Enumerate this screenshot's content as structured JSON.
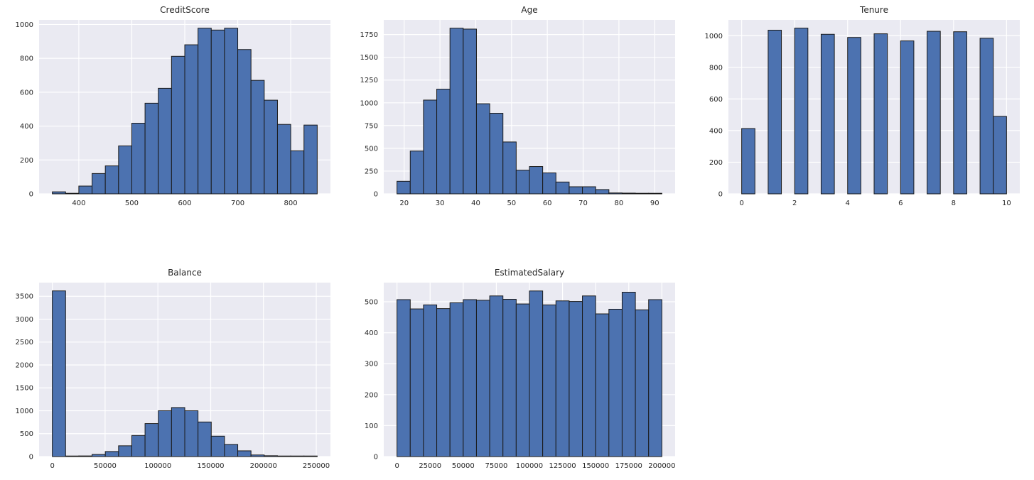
{
  "figure": {
    "background": "#ffffff",
    "plot_background": "#eaeaf2",
    "grid_color": "#ffffff",
    "bar_fill": "#4c72b0",
    "bar_edge": "#1a1a1a",
    "text_color": "#262626"
  },
  "chart_data": [
    {
      "type": "bar",
      "title": "CreditScore",
      "bin_start": 350,
      "bin_width": 25,
      "values": [
        12,
        3,
        46,
        120,
        165,
        283,
        417,
        535,
        623,
        812,
        880,
        978,
        967,
        978,
        852,
        670,
        553,
        410,
        254,
        406
      ],
      "xlim": [
        325,
        875
      ],
      "ylim": [
        0,
        1027
      ],
      "xticks": [
        400,
        500,
        600,
        700,
        800
      ],
      "yticks": [
        0,
        200,
        400,
        600,
        800,
        1000
      ],
      "grid": true,
      "legend": false,
      "row": 1
    },
    {
      "type": "bar",
      "title": "Age",
      "bin_start": 18,
      "bin_width": 3.7,
      "values": [
        138,
        470,
        1030,
        1150,
        1820,
        1810,
        990,
        885,
        570,
        260,
        300,
        230,
        130,
        78,
        78,
        47,
        10,
        8,
        2,
        2
      ],
      "xlim": [
        14.3,
        95.7
      ],
      "ylim": [
        0,
        1911
      ],
      "xticks": [
        20,
        30,
        40,
        50,
        60,
        70,
        80,
        90
      ],
      "yticks": [
        0,
        250,
        500,
        750,
        1000,
        1250,
        1500,
        1750
      ],
      "grid": true,
      "legend": false,
      "row": 1
    },
    {
      "type": "bar",
      "title": "Tenure",
      "bin_start": 0,
      "bin_width": 0.5,
      "values": [
        413,
        0,
        1035,
        0,
        1048,
        0,
        1009,
        0,
        989,
        0,
        1012,
        0,
        967,
        0,
        1028,
        0,
        1025,
        0,
        984,
        490
      ],
      "xlim": [
        -0.5,
        10.5
      ],
      "ylim": [
        0,
        1100
      ],
      "xticks": [
        0,
        2,
        4,
        6,
        8,
        10
      ],
      "yticks": [
        0,
        200,
        400,
        600,
        800,
        1000
      ],
      "grid": true,
      "legend": false,
      "row": 1
    },
    {
      "type": "bar",
      "title": "Balance",
      "bin_start": 0,
      "bin_width": 12545,
      "values": [
        3617,
        1,
        14,
        47,
        110,
        235,
        460,
        720,
        1000,
        1070,
        1000,
        755,
        445,
        265,
        125,
        35,
        18,
        3,
        1,
        1
      ],
      "xlim": [
        -12545,
        263443
      ],
      "ylim": [
        0,
        3798
      ],
      "xticks": [
        0,
        50000,
        100000,
        150000,
        200000,
        250000
      ],
      "yticks": [
        0,
        500,
        1000,
        1500,
        2000,
        2500,
        3000,
        3500
      ],
      "grid": true,
      "legend": false,
      "row": 2
    },
    {
      "type": "bar",
      "title": "EstimatedSalary",
      "bin_start": 0,
      "bin_width": 10000,
      "values": [
        507,
        477,
        490,
        478,
        497,
        507,
        505,
        519,
        508,
        493,
        535,
        490,
        503,
        501,
        519,
        461,
        476,
        531,
        474,
        507
      ],
      "xlim": [
        -10000,
        210000
      ],
      "ylim": [
        0,
        562
      ],
      "xticks": [
        0,
        25000,
        50000,
        75000,
        100000,
        125000,
        150000,
        175000,
        200000
      ],
      "yticks": [
        0,
        100,
        200,
        300,
        400,
        500
      ],
      "grid": true,
      "legend": false,
      "row": 2
    }
  ]
}
